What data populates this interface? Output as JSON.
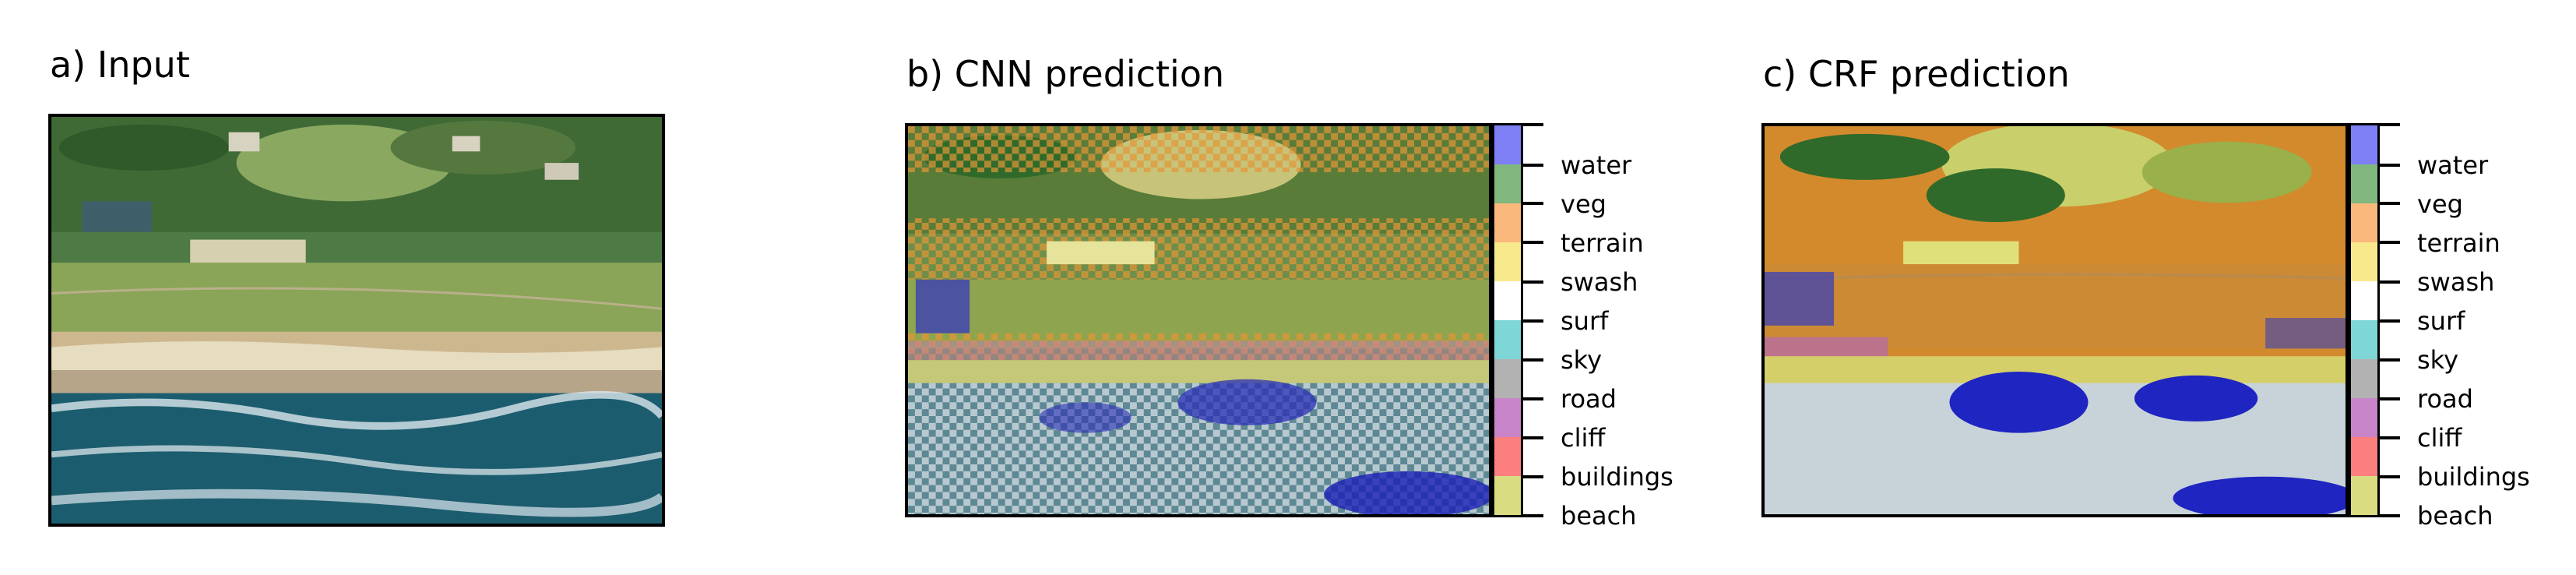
{
  "panels": [
    {
      "title": "a) Input"
    },
    {
      "title": "b) CNN prediction"
    },
    {
      "title": "c) CRF prediction"
    }
  ],
  "classes": [
    {
      "label": "water",
      "color": "#7f7ff5"
    },
    {
      "label": "veg",
      "color": "#7fb77f"
    },
    {
      "label": "terrain",
      "color": "#fbb87d"
    },
    {
      "label": "swash",
      "color": "#f8e98c"
    },
    {
      "label": "surf",
      "color": "#ffffff"
    },
    {
      "label": "sky",
      "color": "#7fd6d6"
    },
    {
      "label": "road",
      "color": "#b2b2b2"
    },
    {
      "label": "cliff",
      "color": "#c884c8"
    },
    {
      "label": "buildings",
      "color": "#fb7f7f"
    },
    {
      "label": "beach",
      "color": "#d9dc80"
    }
  ]
}
